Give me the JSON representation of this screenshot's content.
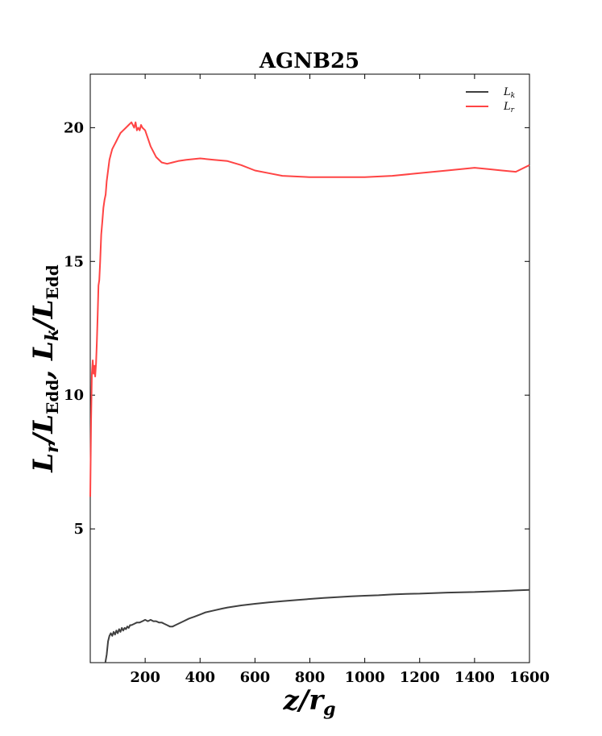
{
  "chart_data": {
    "type": "line",
    "title": "AGNB25",
    "xlabel": "z/r_g",
    "ylabel": "L_r/L_Edd, L_k/L_Edd",
    "xlim": [
      0,
      1600
    ],
    "ylim": [
      0,
      22
    ],
    "x_ticks": [
      200,
      400,
      600,
      800,
      1000,
      1200,
      1400,
      1600
    ],
    "y_ticks": [
      5,
      10,
      15,
      20
    ],
    "grid": false,
    "legend_position": "top-right",
    "series": [
      {
        "name": "L_k",
        "color": "#404040",
        "x": [
          55,
          60,
          65,
          70,
          75,
          80,
          85,
          90,
          95,
          100,
          105,
          110,
          115,
          120,
          125,
          130,
          135,
          140,
          145,
          150,
          160,
          170,
          180,
          190,
          200,
          210,
          220,
          230,
          240,
          250,
          260,
          270,
          280,
          290,
          300,
          310,
          320,
          340,
          360,
          380,
          400,
          420,
          450,
          480,
          500,
          550,
          600,
          650,
          700,
          750,
          800,
          850,
          900,
          950,
          1000,
          1050,
          1100,
          1150,
          1200,
          1250,
          1300,
          1350,
          1400,
          1450,
          1500,
          1550,
          1600
        ],
        "y": [
          0.0,
          0.3,
          0.8,
          1.0,
          1.1,
          1.0,
          1.15,
          1.05,
          1.2,
          1.1,
          1.25,
          1.15,
          1.3,
          1.2,
          1.3,
          1.25,
          1.35,
          1.3,
          1.4,
          1.4,
          1.45,
          1.5,
          1.5,
          1.55,
          1.6,
          1.55,
          1.6,
          1.55,
          1.55,
          1.5,
          1.5,
          1.45,
          1.4,
          1.35,
          1.35,
          1.4,
          1.45,
          1.55,
          1.65,
          1.72,
          1.8,
          1.88,
          1.95,
          2.02,
          2.06,
          2.14,
          2.2,
          2.25,
          2.3,
          2.34,
          2.38,
          2.42,
          2.45,
          2.48,
          2.5,
          2.52,
          2.55,
          2.57,
          2.58,
          2.6,
          2.62,
          2.63,
          2.64,
          2.66,
          2.68,
          2.7,
          2.72
        ]
      },
      {
        "name": "L_r",
        "color": "#ff4444",
        "x": [
          0,
          3,
          6,
          9,
          12,
          15,
          18,
          21,
          24,
          27,
          30,
          33,
          36,
          40,
          44,
          48,
          52,
          56,
          60,
          65,
          70,
          75,
          80,
          85,
          90,
          95,
          100,
          110,
          120,
          130,
          140,
          150,
          160,
          165,
          170,
          175,
          180,
          185,
          190,
          200,
          210,
          220,
          240,
          260,
          280,
          300,
          320,
          350,
          400,
          450,
          500,
          550,
          600,
          650,
          700,
          800,
          900,
          1000,
          1100,
          1200,
          1300,
          1400,
          1450,
          1500,
          1550,
          1600
        ],
        "y": [
          6.2,
          9.0,
          10.8,
          11.3,
          10.8,
          11.1,
          10.7,
          11.2,
          12.0,
          13.0,
          14.1,
          14.3,
          15.0,
          16.0,
          16.5,
          17.0,
          17.3,
          17.5,
          18.0,
          18.4,
          18.8,
          19.0,
          19.2,
          19.3,
          19.4,
          19.5,
          19.6,
          19.8,
          19.9,
          20.0,
          20.1,
          20.2,
          20.0,
          20.2,
          19.9,
          20.0,
          19.9,
          20.1,
          20.0,
          19.9,
          19.6,
          19.3,
          18.9,
          18.7,
          18.65,
          18.7,
          18.75,
          18.8,
          18.85,
          18.8,
          18.75,
          18.6,
          18.4,
          18.3,
          18.2,
          18.15,
          18.15,
          18.15,
          18.2,
          18.3,
          18.4,
          18.5,
          18.45,
          18.4,
          18.35,
          18.6
        ]
      }
    ]
  }
}
